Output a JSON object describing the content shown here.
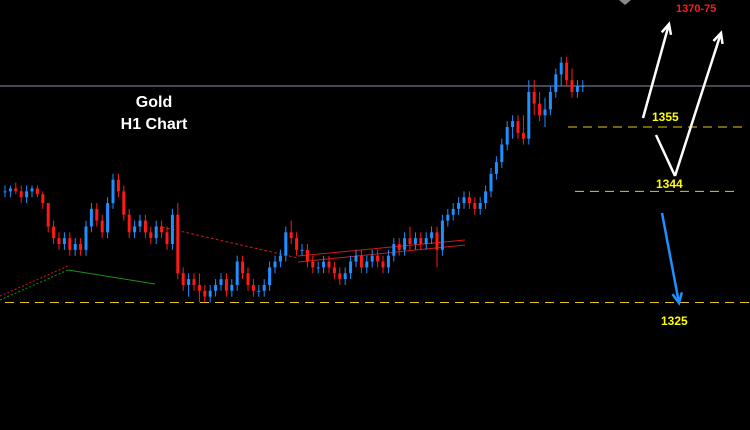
{
  "title_line1": "Gold",
  "title_line2": "H1 Chart",
  "chart_data": {
    "type": "candlestick",
    "colors": {
      "up": "#1e90ff",
      "down": "#ff1a1a",
      "grid_line": "#8a8fa0",
      "level_line": "#e6c619",
      "level_label": "#ffff00",
      "target_label": "#ff1a1a"
    },
    "current_price_line": 1362,
    "levels": [
      {
        "label": "1355",
        "price": 1355
      },
      {
        "label": "1344",
        "price": 1344
      },
      {
        "label": "1325",
        "price": 1325
      }
    ],
    "target": {
      "label": "1370-75"
    },
    "candles": [
      [
        1344,
        1345,
        1343,
        1344
      ],
      [
        1344,
        1345,
        1343,
        1344.5
      ],
      [
        1344.5,
        1345.5,
        1343.5,
        1344
      ],
      [
        1344,
        1345,
        1342,
        1343
      ],
      [
        1343,
        1345,
        1342,
        1344
      ],
      [
        1344,
        1345,
        1343,
        1344.5
      ],
      [
        1344.5,
        1345,
        1343,
        1343.5
      ],
      [
        1343.5,
        1344,
        1341,
        1342
      ],
      [
        1342,
        1342,
        1337,
        1338
      ],
      [
        1338,
        1339,
        1335,
        1336
      ],
      [
        1336,
        1337,
        1334,
        1335
      ],
      [
        1335,
        1337,
        1334,
        1336
      ],
      [
        1336,
        1337,
        1333,
        1334
      ],
      [
        1334,
        1336,
        1333,
        1335
      ],
      [
        1335,
        1336,
        1333,
        1334
      ],
      [
        1334,
        1339,
        1333,
        1338
      ],
      [
        1338,
        1342,
        1337,
        1341
      ],
      [
        1341,
        1342,
        1338,
        1339
      ],
      [
        1339,
        1340,
        1336,
        1337
      ],
      [
        1337,
        1343,
        1336,
        1342
      ],
      [
        1342,
        1347,
        1341,
        1346
      ],
      [
        1346,
        1347,
        1343,
        1344
      ],
      [
        1344,
        1345,
        1339,
        1340
      ],
      [
        1340,
        1341,
        1336,
        1337
      ],
      [
        1337,
        1339,
        1336,
        1338
      ],
      [
        1338,
        1340,
        1337,
        1339
      ],
      [
        1339,
        1340,
        1336,
        1337
      ],
      [
        1337,
        1338,
        1335,
        1336
      ],
      [
        1336,
        1339,
        1335,
        1338
      ],
      [
        1338,
        1339,
        1336,
        1337
      ],
      [
        1337,
        1338,
        1334,
        1335
      ],
      [
        1335,
        1341,
        1334,
        1340
      ],
      [
        1340,
        1342,
        1329,
        1330
      ],
      [
        1330,
        1331,
        1327,
        1328
      ],
      [
        1328,
        1330,
        1326,
        1329
      ],
      [
        1329,
        1330,
        1327,
        1328
      ],
      [
        1328,
        1330,
        1325,
        1327
      ],
      [
        1327,
        1328,
        1325,
        1326
      ],
      [
        1326,
        1328,
        1325,
        1327
      ],
      [
        1327,
        1329,
        1326,
        1328
      ],
      [
        1328,
        1330,
        1327,
        1329
      ],
      [
        1329,
        1330,
        1326,
        1327
      ],
      [
        1327,
        1329,
        1326,
        1328
      ],
      [
        1328,
        1333,
        1327,
        1332
      ],
      [
        1332,
        1333,
        1329,
        1330
      ],
      [
        1330,
        1331,
        1327,
        1328
      ],
      [
        1328,
        1329,
        1326,
        1327
      ],
      [
        1327,
        1328,
        1326,
        1327
      ],
      [
        1327,
        1329,
        1326,
        1328
      ],
      [
        1328,
        1332,
        1327,
        1331
      ],
      [
        1331,
        1333,
        1330,
        1332
      ],
      [
        1332,
        1334,
        1331,
        1333
      ],
      [
        1333,
        1338,
        1332,
        1337
      ],
      [
        1337,
        1339,
        1335,
        1336
      ],
      [
        1336,
        1337,
        1333,
        1334
      ],
      [
        1334,
        1335,
        1333,
        1334
      ],
      [
        1334,
        1335,
        1331,
        1332
      ],
      [
        1332,
        1333,
        1330,
        1331
      ],
      [
        1331,
        1332,
        1330,
        1331
      ],
      [
        1331,
        1333,
        1330,
        1332
      ],
      [
        1332,
        1333,
        1330,
        1331
      ],
      [
        1331,
        1332,
        1329,
        1330
      ],
      [
        1330,
        1331,
        1328,
        1329
      ],
      [
        1329,
        1331,
        1328,
        1330
      ],
      [
        1330,
        1333,
        1329,
        1332
      ],
      [
        1332,
        1334,
        1331,
        1333
      ],
      [
        1333,
        1334,
        1330,
        1331
      ],
      [
        1331,
        1333,
        1330,
        1332
      ],
      [
        1332,
        1334,
        1331,
        1333
      ],
      [
        1333,
        1334,
        1331,
        1332
      ],
      [
        1332,
        1333,
        1330,
        1331
      ],
      [
        1331,
        1334,
        1330,
        1333
      ],
      [
        1333,
        1336,
        1332,
        1335
      ],
      [
        1335,
        1336,
        1333,
        1334
      ],
      [
        1334,
        1337,
        1333,
        1336
      ],
      [
        1336,
        1338,
        1334,
        1335
      ],
      [
        1335,
        1337,
        1334,
        1336
      ],
      [
        1336,
        1337,
        1334,
        1335
      ],
      [
        1335,
        1337,
        1334,
        1336
      ],
      [
        1336,
        1338,
        1335,
        1337
      ],
      [
        1337,
        1338,
        1331,
        1334
      ],
      [
        1334,
        1340,
        1333,
        1339
      ],
      [
        1339,
        1341,
        1338,
        1340
      ],
      [
        1340,
        1342,
        1339,
        1341
      ],
      [
        1341,
        1343,
        1340,
        1342
      ],
      [
        1342,
        1344,
        1341,
        1343
      ],
      [
        1343,
        1344,
        1341,
        1342
      ],
      [
        1342,
        1343,
        1340,
        1341
      ],
      [
        1341,
        1343,
        1340,
        1342
      ],
      [
        1342,
        1345,
        1341,
        1344
      ],
      [
        1344,
        1348,
        1343,
        1347
      ],
      [
        1347,
        1350,
        1346,
        1349
      ],
      [
        1349,
        1353,
        1348,
        1352
      ],
      [
        1352,
        1356,
        1351,
        1355
      ],
      [
        1355,
        1357,
        1353,
        1356
      ],
      [
        1356,
        1357,
        1353,
        1354
      ],
      [
        1354,
        1357,
        1352,
        1353
      ],
      [
        1353,
        1363,
        1352,
        1361
      ],
      [
        1361,
        1363,
        1357,
        1359
      ],
      [
        1359,
        1361,
        1356,
        1357
      ],
      [
        1357,
        1360,
        1355,
        1358
      ],
      [
        1358,
        1362,
        1357,
        1361
      ],
      [
        1361,
        1365,
        1360,
        1364
      ],
      [
        1364,
        1367,
        1362,
        1366
      ],
      [
        1366,
        1367,
        1362,
        1363
      ],
      [
        1363,
        1365,
        1360,
        1361
      ],
      [
        1361,
        1363,
        1360,
        1362
      ],
      [
        1362,
        1363,
        1361,
        1362
      ]
    ]
  }
}
